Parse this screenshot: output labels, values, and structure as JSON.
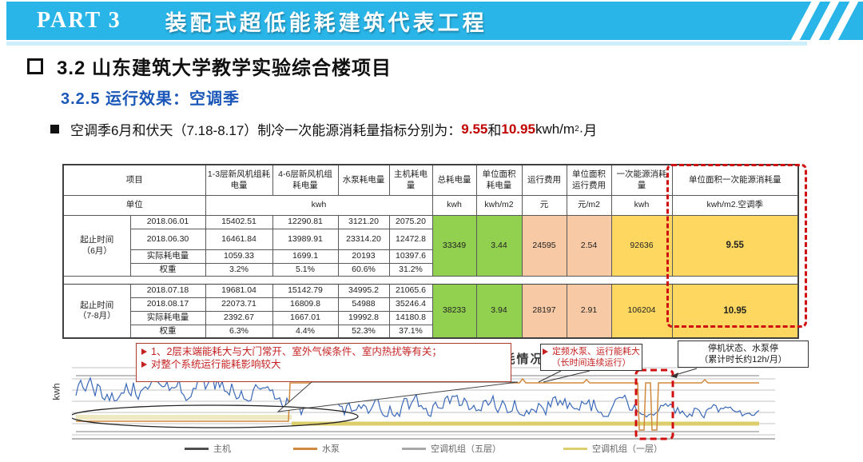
{
  "header": {
    "part_label": "PART 3",
    "title": "装配式超低能耗建筑代表工程",
    "accent_color": "#29b5e8"
  },
  "section": {
    "title": "3.2 山东建筑大学教学实验综合楼项目",
    "subtitle": "3.2.5 运行效果：空调季",
    "subtitle_color": "#1b57b8"
  },
  "summary_bullet": {
    "prefix": "空调季6月和伏天（7.18-8.17）制冷一次能源消耗量指标分别为：",
    "value_june": "9.55",
    "conjunction": "和",
    "value_julaug": "10.95",
    "unit_base": "kwh/m",
    "unit_exponent": "2",
    "unit_suffix": "·月",
    "highlight_color": "#c00000"
  },
  "table": {
    "corner_item": "项目",
    "corner_unit": "单位",
    "col_headers": [
      "1-3层新风机组耗电量",
      "4-6层新风机组耗电量",
      "水泵耗电量",
      "主机耗电量",
      "总耗电量",
      "单位面积耗电量",
      "运行费用",
      "单位面积运行费用",
      "一次能源消耗量",
      "单位面积一次能源消耗量"
    ],
    "unit_kwh_group": "kwh",
    "unit_cells": [
      "kwh",
      "kwh/m2",
      "元",
      "元/m2",
      "kwh",
      "kwh/m2.空调季"
    ],
    "colors": {
      "green": "#92d050",
      "peach": "#f7c9a4",
      "yellow": "#fdd75f",
      "dashed_red": "#d01010"
    },
    "blocks": [
      {
        "group_line1": "起止时间",
        "group_line2": "（6月）",
        "rows": [
          [
            "2018.06.01",
            "15402.51",
            "12290.81",
            "3121.20",
            "2075.20"
          ],
          [
            "2018.06.30",
            "16461.84",
            "13989.91",
            "23314.20",
            "12472.8"
          ],
          [
            "实际耗电量",
            "1059.33",
            "1699.1",
            "20193",
            "10397.6"
          ],
          [
            "权重",
            "3.2%",
            "5.1%",
            "60.6%",
            "31.2%"
          ]
        ],
        "summary": [
          "33349",
          "3.44",
          "24595",
          "2.54",
          "92636",
          "9.55"
        ]
      },
      {
        "group_line1": "起止时间",
        "group_line2": "（7-8月）",
        "rows": [
          [
            "2018.07.18",
            "19681.04",
            "15142.79",
            "34995.2",
            "21065.6"
          ],
          [
            "2018.08.17",
            "22073.71",
            "16809.8",
            "54988",
            "35246.4"
          ],
          [
            "实际耗电量",
            "2392.67",
            "1667.01",
            "19992.8",
            "14180.8"
          ],
          [
            "权重",
            "6.3%",
            "4.4%",
            "52.3%",
            "37.1%"
          ]
        ],
        "summary": [
          "38233",
          "3.94",
          "28197",
          "2.91",
          "106204",
          "10.95"
        ]
      }
    ]
  },
  "chart": {
    "title": "最热月空调系统运行能耗情况",
    "ylabel": "kwh",
    "series": [
      {
        "name": "主机",
        "color": "#4f4f4f"
      },
      {
        "name": "水泵",
        "color": "#d0893c"
      },
      {
        "name": "空调机组（五层）",
        "color": "#a8a8a8"
      },
      {
        "name": "空调机组（一层）",
        "color": "#ddcf6e"
      }
    ],
    "plot_colors": {
      "main_line": "#3a68b8",
      "pump_line": "#d0893c",
      "band": "#dccf6b",
      "band_pale": "#efe9c2",
      "grid": "#c3c3c3",
      "flat": "#9a9a9a",
      "alert_red": "#d01010"
    },
    "callouts": [
      {
        "lines": [
          "1、2层末端能耗大与大门常开、室外气候条件、室内热扰等有关；",
          "对整个系统运行能耗影响较大"
        ],
        "text_color": "#c52222"
      },
      {
        "lines": [
          "定频水泵、运行能耗大",
          "（长时间连续运行）"
        ],
        "text_color": "#c52222"
      },
      {
        "lines": [
          "停机状态、水泵停",
          "（累计时长约12h/月）"
        ],
        "text_color": "#1a1a1a"
      }
    ]
  }
}
